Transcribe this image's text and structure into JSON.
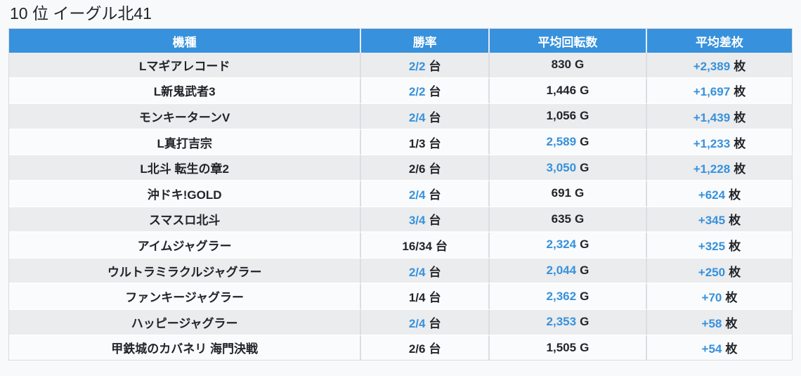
{
  "page": {
    "title": "10 位 イーグル北41"
  },
  "colors": {
    "header_bg": "#3791dc",
    "header_text": "#ffffff",
    "accent_blue": "#3791dc",
    "text_dark": "#212529",
    "row_odd_bg": "#ebecee",
    "row_even_bg": "#fafbfc",
    "page_bg": "#f8f9fa"
  },
  "table": {
    "columns": [
      "機種",
      "勝率",
      "平均回転数",
      "平均差枚"
    ],
    "units": {
      "win_rate": "台",
      "spins": "G",
      "diff": "枚"
    },
    "rows": [
      {
        "machine": "Lマギアレコード",
        "win_rate": "2/2",
        "win_rate_blue": true,
        "spins": "830",
        "spins_blue": false,
        "diff": "+2,389",
        "diff_blue": true
      },
      {
        "machine": "L新鬼武者3",
        "win_rate": "2/2",
        "win_rate_blue": true,
        "spins": "1,446",
        "spins_blue": false,
        "diff": "+1,697",
        "diff_blue": true
      },
      {
        "machine": "モンキーターンV",
        "win_rate": "2/4",
        "win_rate_blue": true,
        "spins": "1,056",
        "spins_blue": false,
        "diff": "+1,439",
        "diff_blue": true
      },
      {
        "machine": "L真打吉宗",
        "win_rate": "1/3",
        "win_rate_blue": false,
        "spins": "2,589",
        "spins_blue": true,
        "diff": "+1,233",
        "diff_blue": true
      },
      {
        "machine": "L北斗 転生の章2",
        "win_rate": "2/6",
        "win_rate_blue": false,
        "spins": "3,050",
        "spins_blue": true,
        "diff": "+1,228",
        "diff_blue": true
      },
      {
        "machine": "沖ドキ!GOLD",
        "win_rate": "2/4",
        "win_rate_blue": true,
        "spins": "691",
        "spins_blue": false,
        "diff": "+624",
        "diff_blue": true
      },
      {
        "machine": "スマスロ北斗",
        "win_rate": "3/4",
        "win_rate_blue": true,
        "spins": "635",
        "spins_blue": false,
        "diff": "+345",
        "diff_blue": true
      },
      {
        "machine": "アイムジャグラー",
        "win_rate": "16/34",
        "win_rate_blue": false,
        "spins": "2,324",
        "spins_blue": true,
        "diff": "+325",
        "diff_blue": true
      },
      {
        "machine": "ウルトラミラクルジャグラー",
        "win_rate": "2/4",
        "win_rate_blue": true,
        "spins": "2,044",
        "spins_blue": true,
        "diff": "+250",
        "diff_blue": true
      },
      {
        "machine": "ファンキージャグラー",
        "win_rate": "1/4",
        "win_rate_blue": false,
        "spins": "2,362",
        "spins_blue": true,
        "diff": "+70",
        "diff_blue": true
      },
      {
        "machine": "ハッピージャグラー",
        "win_rate": "2/4",
        "win_rate_blue": true,
        "spins": "2,353",
        "spins_blue": true,
        "diff": "+58",
        "diff_blue": true
      },
      {
        "machine": "甲鉄城のカバネリ 海門決戦",
        "win_rate": "2/6",
        "win_rate_blue": false,
        "spins": "1,505",
        "spins_blue": false,
        "diff": "+54",
        "diff_blue": true
      }
    ]
  },
  "chart_data": {
    "type": "table",
    "title": "10 位 イーグル北41",
    "columns": [
      "機種",
      "勝率",
      "平均回転数",
      "平均差枚"
    ],
    "rows": [
      [
        "Lマギアレコード",
        "2/2 台",
        "830 G",
        "+2,389 枚"
      ],
      [
        "L新鬼武者3",
        "2/2 台",
        "1,446 G",
        "+1,697 枚"
      ],
      [
        "モンキーターンV",
        "2/4 台",
        "1,056 G",
        "+1,439 枚"
      ],
      [
        "L真打吉宗",
        "1/3 台",
        "2,589 G",
        "+1,233 枚"
      ],
      [
        "L北斗 転生の章2",
        "2/6 台",
        "3,050 G",
        "+1,228 枚"
      ],
      [
        "沖ドキ!GOLD",
        "2/4 台",
        "691 G",
        "+624 枚"
      ],
      [
        "スマスロ北斗",
        "3/4 台",
        "635 G",
        "+345 枚"
      ],
      [
        "アイムジャグラー",
        "16/34 台",
        "2,324 G",
        "+325 枚"
      ],
      [
        "ウルトラミラクルジャグラー",
        "2/4 台",
        "2,044 G",
        "+250 枚"
      ],
      [
        "ファンキージャグラー",
        "1/4 台",
        "2,362 G",
        "+70 枚"
      ],
      [
        "ハッピージャグラー",
        "2/4 台",
        "2,353 G",
        "+58 枚"
      ],
      [
        "甲鉄城のカバネリ 海門決戦",
        "2/6 台",
        "1,505 G",
        "+54 枚"
      ]
    ]
  }
}
